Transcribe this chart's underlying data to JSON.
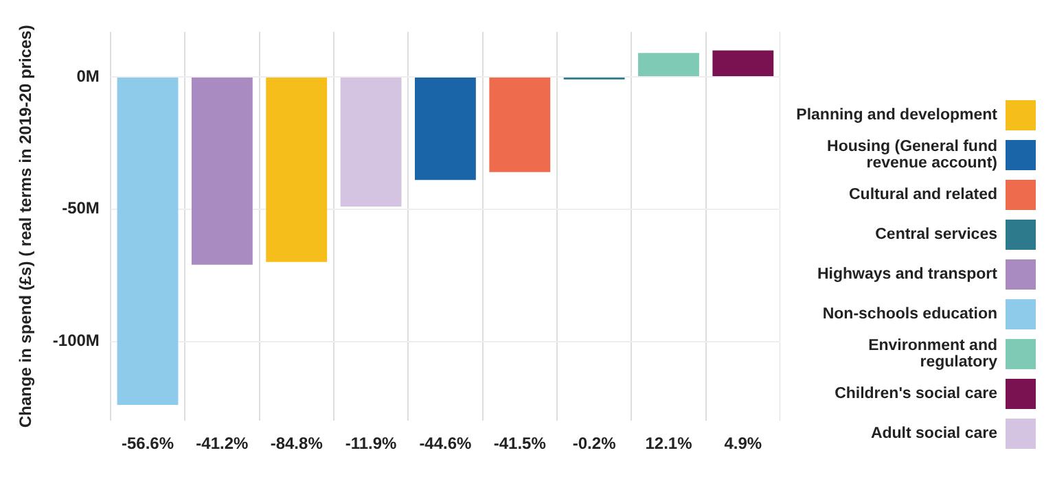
{
  "chart_data": {
    "type": "bar",
    "ylabel": "Change in spend (£s) ( real terms in 2019-20 prices)",
    "categories": [
      "-56.6%",
      "-41.2%",
      "-84.8%",
      "-11.9%",
      "-44.6%",
      "-41.5%",
      "-0.2%",
      "12.1%",
      "4.9%"
    ],
    "series": [
      {
        "name": "Planning and development",
        "color": "#f6be1a",
        "values": [
          null,
          null,
          -70,
          null,
          null,
          null,
          null,
          null,
          null
        ]
      },
      {
        "name": "Housing (General fund revenue account)",
        "color": "#1a65a8",
        "values": [
          null,
          null,
          null,
          null,
          -39,
          null,
          null,
          null,
          null
        ]
      },
      {
        "name": "Cultural and related",
        "color": "#ef6b4d",
        "values": [
          null,
          null,
          null,
          null,
          null,
          -36,
          null,
          null,
          null
        ]
      },
      {
        "name": "Central services",
        "color": "#2c7a8c",
        "values": [
          null,
          null,
          null,
          null,
          null,
          null,
          -1,
          null,
          null
        ]
      },
      {
        "name": "Highways and transport",
        "color": "#a98bc1",
        "values": [
          null,
          -71,
          null,
          null,
          null,
          null,
          null,
          null,
          null
        ]
      },
      {
        "name": "Non-schools education",
        "color": "#8ecbeb",
        "values": [
          -124,
          null,
          null,
          null,
          null,
          null,
          null,
          null,
          null
        ]
      },
      {
        "name": "Environment and regulatory",
        "color": "#7ecab5",
        "values": [
          null,
          null,
          null,
          null,
          null,
          null,
          null,
          9,
          null
        ]
      },
      {
        "name": "Children's social care",
        "color": "#7a1150",
        "values": [
          null,
          null,
          null,
          null,
          null,
          null,
          null,
          null,
          10
        ]
      },
      {
        "name": "Adult social care",
        "color": "#d4c4e2",
        "values": [
          null,
          null,
          null,
          -49,
          null,
          null,
          null,
          null,
          null
        ]
      }
    ],
    "ylim": [
      -130,
      17
    ],
    "yticks": [
      {
        "value": -100,
        "label": "-100M"
      },
      {
        "value": -50,
        "label": "-50M"
      },
      {
        "value": 0,
        "label": "0M"
      }
    ],
    "grid": true,
    "legend": "right"
  }
}
